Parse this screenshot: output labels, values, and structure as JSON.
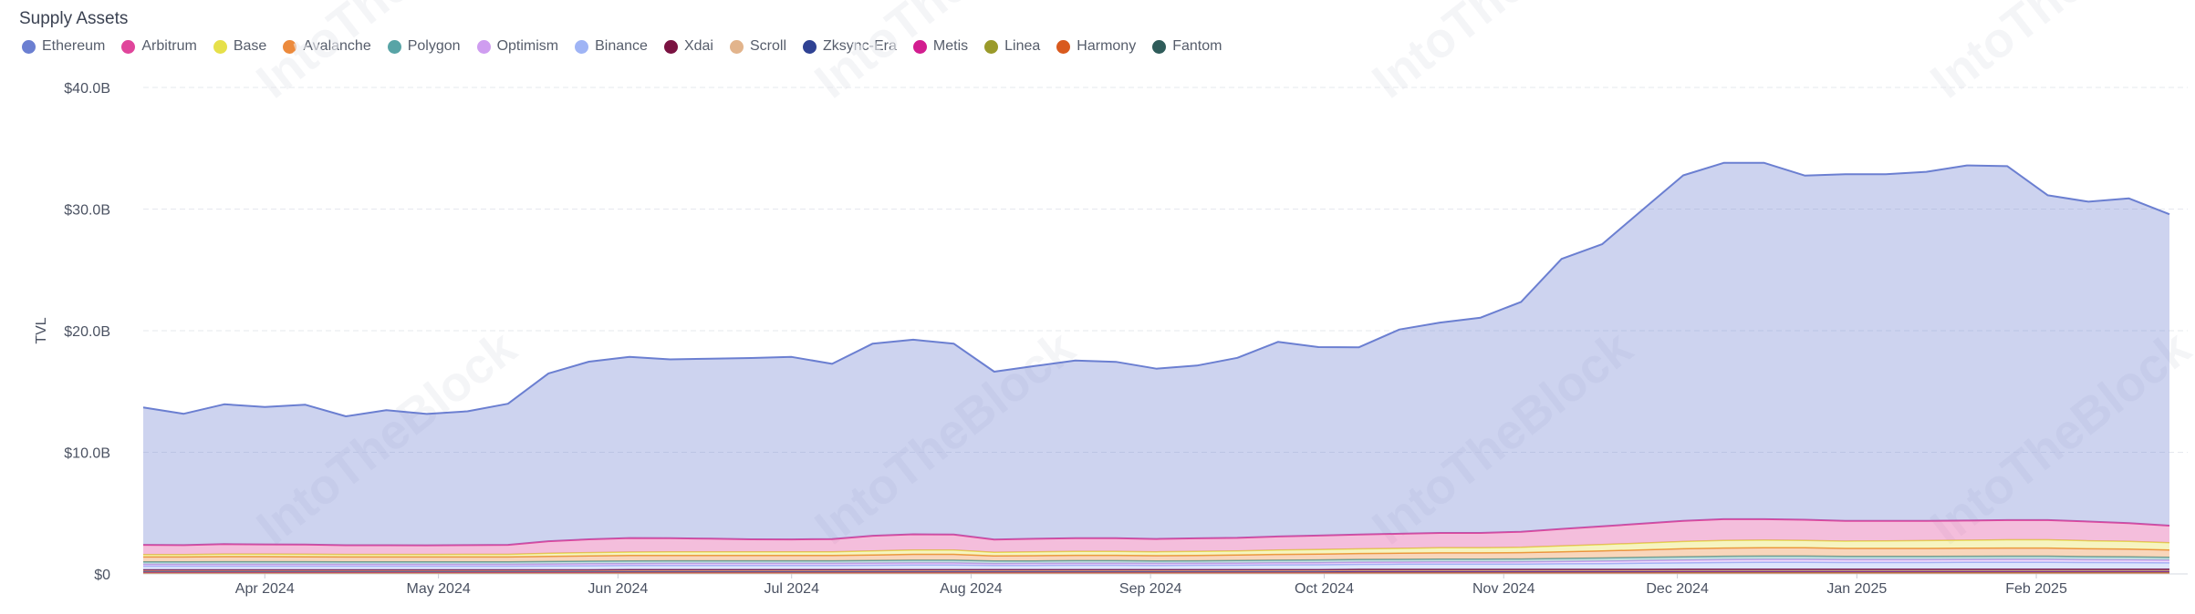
{
  "title": "Supply Assets",
  "legend": [
    {
      "name": "Ethereum",
      "color": "#6b7fd1"
    },
    {
      "name": "Arbitrum",
      "color": "#e0459b"
    },
    {
      "name": "Base",
      "color": "#e6e04a"
    },
    {
      "name": "Avalanche",
      "color": "#ec8a3c"
    },
    {
      "name": "Polygon",
      "color": "#58a4a6"
    },
    {
      "name": "Optimism",
      "color": "#cf9df0"
    },
    {
      "name": "Binance",
      "color": "#9fb4f5"
    },
    {
      "name": "Xdai",
      "color": "#7a1241"
    },
    {
      "name": "Scroll",
      "color": "#e2b48c"
    },
    {
      "name": "Zksync-Era",
      "color": "#2f4293"
    },
    {
      "name": "Metis",
      "color": "#d21d8f"
    },
    {
      "name": "Linea",
      "color": "#9a9a2a"
    },
    {
      "name": "Harmony",
      "color": "#d95a1e"
    },
    {
      "name": "Fantom",
      "color": "#2f5c5a"
    }
  ],
  "watermark": "IntoTheBlock",
  "chart_data": {
    "type": "area",
    "ylabel": "TVL",
    "xlabel": "",
    "ylim": [
      0,
      40
    ],
    "y_ticks": [
      "$0",
      "$10.0B",
      "$20.0B",
      "$30.0B",
      "$40.0B"
    ],
    "y_tick_values": [
      0,
      10,
      20,
      30,
      40
    ],
    "x_ticks": [
      "Apr 2024",
      "May 2024",
      "Jun 2024",
      "Jul 2024",
      "Aug 2024",
      "Sep 2024",
      "Oct 2024",
      "Nov 2024",
      "Dec 2024",
      "Jan 2025",
      "Feb 2025"
    ],
    "x_tick_dates": [
      "2024-04-01",
      "2024-05-01",
      "2024-06-01",
      "2024-07-01",
      "2024-08-01",
      "2024-09-01",
      "2024-10-01",
      "2024-11-01",
      "2024-12-01",
      "2025-01-01",
      "2025-02-01"
    ],
    "x": [
      "2024-03-11",
      "2024-03-18",
      "2024-03-25",
      "2024-04-01",
      "2024-04-08",
      "2024-04-15",
      "2024-04-22",
      "2024-04-29",
      "2024-05-06",
      "2024-05-13",
      "2024-05-20",
      "2024-05-27",
      "2024-06-03",
      "2024-06-10",
      "2024-06-17",
      "2024-06-24",
      "2024-07-01",
      "2024-07-08",
      "2024-07-15",
      "2024-07-22",
      "2024-07-29",
      "2024-08-05",
      "2024-08-12",
      "2024-08-19",
      "2024-08-26",
      "2024-09-02",
      "2024-09-09",
      "2024-09-16",
      "2024-09-23",
      "2024-09-30",
      "2024-10-07",
      "2024-10-14",
      "2024-10-21",
      "2024-10-28",
      "2024-11-04",
      "2024-11-11",
      "2024-11-18",
      "2024-11-25",
      "2024-12-02",
      "2024-12-09",
      "2024-12-16",
      "2024-12-23",
      "2024-12-30",
      "2025-01-06",
      "2025-01-13",
      "2025-01-20",
      "2025-01-27",
      "2025-02-03",
      "2025-02-10",
      "2025-02-17",
      "2025-02-24"
    ],
    "units": "$B",
    "series": [
      {
        "name": "Fantom",
        "values": [
          0.05,
          0.05,
          0.05,
          0.05,
          0.05,
          0.05,
          0.05,
          0.05,
          0.05,
          0.05,
          0.05,
          0.05,
          0.05,
          0.05,
          0.05,
          0.05,
          0.05,
          0.05,
          0.05,
          0.05,
          0.05,
          0.05,
          0.05,
          0.05,
          0.05,
          0.05,
          0.05,
          0.05,
          0.05,
          0.05,
          0.05,
          0.05,
          0.05,
          0.05,
          0.05,
          0.05,
          0.05,
          0.05,
          0.05,
          0.05,
          0.05,
          0.05,
          0.05,
          0.05,
          0.05,
          0.05,
          0.05,
          0.05,
          0.05,
          0.05,
          0.05
        ]
      },
      {
        "name": "Harmony",
        "values": [
          0.02,
          0.02,
          0.02,
          0.02,
          0.02,
          0.02,
          0.02,
          0.02,
          0.02,
          0.02,
          0.02,
          0.02,
          0.02,
          0.02,
          0.02,
          0.02,
          0.02,
          0.02,
          0.02,
          0.02,
          0.02,
          0.02,
          0.02,
          0.02,
          0.02,
          0.02,
          0.02,
          0.02,
          0.02,
          0.02,
          0.02,
          0.02,
          0.02,
          0.02,
          0.02,
          0.02,
          0.02,
          0.02,
          0.02,
          0.02,
          0.02,
          0.02,
          0.02,
          0.02,
          0.02,
          0.02,
          0.02,
          0.02,
          0.02,
          0.02,
          0.02
        ]
      },
      {
        "name": "Linea",
        "values": [
          0.05,
          0.05,
          0.05,
          0.05,
          0.05,
          0.05,
          0.05,
          0.05,
          0.05,
          0.05,
          0.05,
          0.05,
          0.06,
          0.06,
          0.06,
          0.06,
          0.06,
          0.06,
          0.06,
          0.06,
          0.06,
          0.06,
          0.06,
          0.06,
          0.06,
          0.06,
          0.06,
          0.06,
          0.06,
          0.06,
          0.07,
          0.07,
          0.07,
          0.07,
          0.07,
          0.07,
          0.07,
          0.07,
          0.08,
          0.08,
          0.08,
          0.08,
          0.08,
          0.08,
          0.08,
          0.08,
          0.08,
          0.08,
          0.08,
          0.08,
          0.08
        ]
      },
      {
        "name": "Metis",
        "values": [
          0.04,
          0.04,
          0.04,
          0.04,
          0.04,
          0.04,
          0.04,
          0.04,
          0.04,
          0.04,
          0.04,
          0.04,
          0.04,
          0.04,
          0.04,
          0.04,
          0.04,
          0.04,
          0.04,
          0.04,
          0.04,
          0.04,
          0.04,
          0.04,
          0.04,
          0.04,
          0.04,
          0.04,
          0.04,
          0.04,
          0.04,
          0.04,
          0.04,
          0.04,
          0.04,
          0.04,
          0.04,
          0.04,
          0.04,
          0.04,
          0.04,
          0.04,
          0.04,
          0.04,
          0.04,
          0.04,
          0.04,
          0.04,
          0.04,
          0.04,
          0.04
        ]
      },
      {
        "name": "Zksync-Era",
        "values": [
          0.05,
          0.05,
          0.05,
          0.05,
          0.05,
          0.05,
          0.05,
          0.05,
          0.05,
          0.05,
          0.05,
          0.05,
          0.05,
          0.05,
          0.05,
          0.05,
          0.05,
          0.05,
          0.05,
          0.05,
          0.05,
          0.05,
          0.05,
          0.05,
          0.05,
          0.05,
          0.05,
          0.05,
          0.05,
          0.05,
          0.05,
          0.05,
          0.05,
          0.05,
          0.05,
          0.05,
          0.05,
          0.05,
          0.05,
          0.05,
          0.05,
          0.05,
          0.05,
          0.05,
          0.05,
          0.05,
          0.05,
          0.05,
          0.05,
          0.05,
          0.05
        ]
      },
      {
        "name": "Scroll",
        "values": [
          0.05,
          0.05,
          0.05,
          0.05,
          0.05,
          0.05,
          0.05,
          0.05,
          0.05,
          0.05,
          0.05,
          0.05,
          0.05,
          0.05,
          0.05,
          0.05,
          0.05,
          0.05,
          0.05,
          0.05,
          0.05,
          0.05,
          0.05,
          0.05,
          0.05,
          0.05,
          0.05,
          0.05,
          0.05,
          0.05,
          0.06,
          0.06,
          0.06,
          0.06,
          0.06,
          0.06,
          0.06,
          0.06,
          0.06,
          0.06,
          0.06,
          0.06,
          0.06,
          0.06,
          0.06,
          0.06,
          0.06,
          0.06,
          0.06,
          0.06,
          0.06
        ]
      },
      {
        "name": "Xdai",
        "values": [
          0.08,
          0.08,
          0.08,
          0.08,
          0.08,
          0.08,
          0.08,
          0.08,
          0.08,
          0.08,
          0.08,
          0.08,
          0.08,
          0.08,
          0.08,
          0.08,
          0.08,
          0.08,
          0.08,
          0.08,
          0.08,
          0.08,
          0.08,
          0.08,
          0.08,
          0.08,
          0.08,
          0.08,
          0.08,
          0.08,
          0.09,
          0.09,
          0.09,
          0.09,
          0.09,
          0.09,
          0.09,
          0.09,
          0.09,
          0.09,
          0.09,
          0.09,
          0.09,
          0.09,
          0.09,
          0.09,
          0.09,
          0.09,
          0.09,
          0.09,
          0.09
        ]
      },
      {
        "name": "Binance",
        "values": [
          0.3,
          0.3,
          0.3,
          0.3,
          0.3,
          0.3,
          0.3,
          0.3,
          0.3,
          0.3,
          0.32,
          0.33,
          0.34,
          0.35,
          0.35,
          0.35,
          0.35,
          0.35,
          0.36,
          0.38,
          0.38,
          0.34,
          0.35,
          0.36,
          0.36,
          0.35,
          0.36,
          0.37,
          0.39,
          0.4,
          0.41,
          0.42,
          0.42,
          0.42,
          0.43,
          0.45,
          0.47,
          0.5,
          0.52,
          0.55,
          0.56,
          0.56,
          0.55,
          0.55,
          0.55,
          0.56,
          0.57,
          0.57,
          0.55,
          0.54,
          0.52
        ]
      },
      {
        "name": "Optimism",
        "values": [
          0.15,
          0.15,
          0.15,
          0.15,
          0.15,
          0.15,
          0.15,
          0.15,
          0.15,
          0.15,
          0.15,
          0.16,
          0.16,
          0.16,
          0.16,
          0.16,
          0.16,
          0.16,
          0.17,
          0.17,
          0.17,
          0.16,
          0.16,
          0.16,
          0.16,
          0.16,
          0.16,
          0.16,
          0.17,
          0.17,
          0.17,
          0.17,
          0.18,
          0.18,
          0.18,
          0.19,
          0.2,
          0.21,
          0.22,
          0.23,
          0.24,
          0.24,
          0.23,
          0.23,
          0.23,
          0.23,
          0.23,
          0.23,
          0.22,
          0.22,
          0.21
        ]
      },
      {
        "name": "Polygon",
        "values": [
          0.2,
          0.2,
          0.21,
          0.21,
          0.21,
          0.2,
          0.2,
          0.2,
          0.2,
          0.2,
          0.21,
          0.22,
          0.22,
          0.22,
          0.22,
          0.22,
          0.22,
          0.22,
          0.22,
          0.23,
          0.23,
          0.21,
          0.21,
          0.22,
          0.22,
          0.21,
          0.21,
          0.22,
          0.22,
          0.23,
          0.23,
          0.23,
          0.24,
          0.24,
          0.24,
          0.25,
          0.26,
          0.27,
          0.28,
          0.28,
          0.28,
          0.28,
          0.27,
          0.27,
          0.27,
          0.27,
          0.27,
          0.27,
          0.26,
          0.26,
          0.25
        ]
      },
      {
        "name": "Avalanche",
        "values": [
          0.4,
          0.4,
          0.42,
          0.42,
          0.41,
          0.4,
          0.4,
          0.4,
          0.4,
          0.4,
          0.42,
          0.43,
          0.44,
          0.44,
          0.44,
          0.44,
          0.44,
          0.44,
          0.46,
          0.48,
          0.48,
          0.42,
          0.43,
          0.44,
          0.44,
          0.43,
          0.44,
          0.45,
          0.47,
          0.48,
          0.49,
          0.5,
          0.51,
          0.51,
          0.52,
          0.55,
          0.58,
          0.62,
          0.66,
          0.68,
          0.69,
          0.68,
          0.66,
          0.66,
          0.66,
          0.66,
          0.67,
          0.67,
          0.65,
          0.63,
          0.6
        ]
      },
      {
        "name": "Base",
        "values": [
          0.2,
          0.2,
          0.21,
          0.21,
          0.21,
          0.21,
          0.21,
          0.21,
          0.22,
          0.22,
          0.25,
          0.27,
          0.29,
          0.3,
          0.3,
          0.3,
          0.3,
          0.3,
          0.33,
          0.35,
          0.35,
          0.3,
          0.32,
          0.33,
          0.33,
          0.32,
          0.33,
          0.34,
          0.36,
          0.37,
          0.38,
          0.4,
          0.42,
          0.42,
          0.44,
          0.48,
          0.52,
          0.56,
          0.6,
          0.62,
          0.62,
          0.61,
          0.6,
          0.62,
          0.64,
          0.66,
          0.68,
          0.68,
          0.66,
          0.64,
          0.6
        ]
      },
      {
        "name": "Arbitrum",
        "values": [
          0.8,
          0.78,
          0.82,
          0.8,
          0.79,
          0.76,
          0.76,
          0.75,
          0.76,
          0.78,
          1.0,
          1.1,
          1.15,
          1.12,
          1.08,
          1.03,
          1.02,
          1.05,
          1.25,
          1.3,
          1.28,
          1.05,
          1.07,
          1.08,
          1.08,
          1.06,
          1.08,
          1.08,
          1.12,
          1.15,
          1.18,
          1.2,
          1.22,
          1.22,
          1.28,
          1.4,
          1.5,
          1.6,
          1.7,
          1.75,
          1.72,
          1.7,
          1.66,
          1.64,
          1.62,
          1.62,
          1.62,
          1.62,
          1.58,
          1.5,
          1.4
        ]
      },
      {
        "name": "Ethereum",
        "values": [
          11.3,
          10.8,
          11.5,
          11.3,
          11.5,
          10.6,
          11.1,
          10.8,
          11.0,
          11.6,
          13.8,
          14.6,
          14.9,
          14.7,
          14.8,
          14.9,
          15.0,
          14.4,
          15.8,
          16.0,
          15.7,
          13.8,
          14.2,
          14.6,
          14.5,
          14.0,
          14.2,
          14.8,
          16.0,
          15.5,
          15.4,
          16.8,
          17.3,
          17.7,
          18.9,
          22.2,
          23.2,
          25.8,
          28.4,
          29.3,
          29.3,
          28.3,
          28.5,
          28.5,
          28.7,
          29.2,
          29.1,
          26.7,
          26.3,
          26.7,
          25.6
        ]
      }
    ]
  }
}
